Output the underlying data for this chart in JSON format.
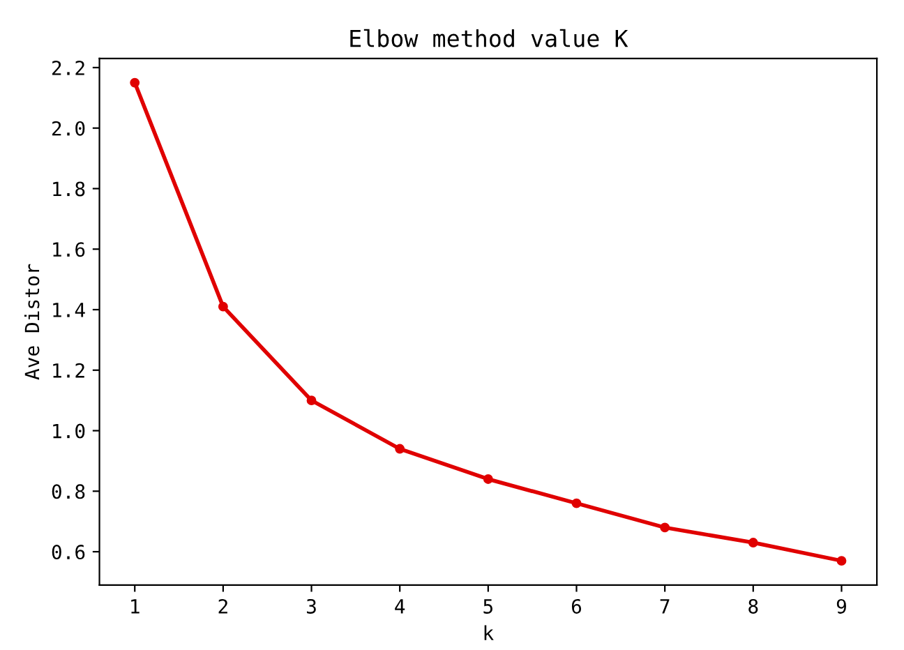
{
  "chart_data": {
    "type": "line",
    "title": "Elbow method value K",
    "xlabel": "k",
    "ylabel": "Ave Distor",
    "x": [
      1,
      2,
      3,
      4,
      5,
      6,
      7,
      8,
      9
    ],
    "series": [
      {
        "color": "#e00000",
        "values": [
          2.15,
          1.41,
          1.1,
          0.94,
          0.84,
          0.76,
          0.68,
          0.63,
          0.57
        ]
      }
    ],
    "xlim": [
      0.6,
      9.4
    ],
    "xticks": [
      1,
      2,
      3,
      4,
      5,
      6,
      7,
      8,
      9
    ],
    "ylim": [
      0.49,
      2.23
    ],
    "yticks": [
      {
        "value": 0.6,
        "label": "0.6"
      },
      {
        "value": 0.8,
        "label": "0.8"
      },
      {
        "value": 1.0,
        "label": "1.0"
      },
      {
        "value": 1.2,
        "label": "1.2"
      },
      {
        "value": 1.4,
        "label": "1.4"
      },
      {
        "value": 1.6,
        "label": "1.6"
      },
      {
        "value": 1.8,
        "label": "1.8"
      },
      {
        "value": 2.0,
        "label": "2.0"
      },
      {
        "value": 2.2,
        "label": "2.2"
      }
    ],
    "grid": false,
    "marker": "circle",
    "line_style": "solid"
  }
}
